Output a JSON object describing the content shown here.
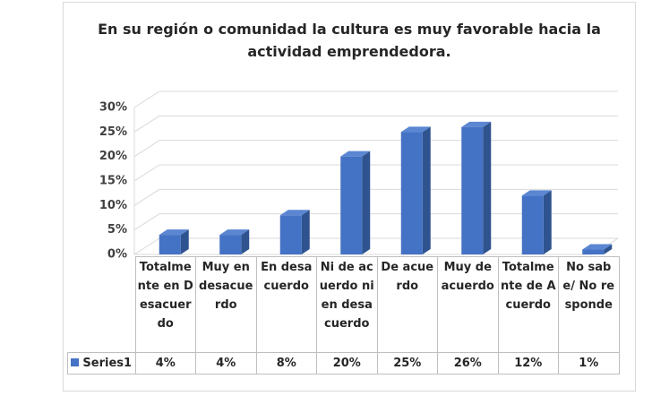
{
  "chart_data": {
    "type": "bar3d",
    "title": "En su región o comunidad la cultura es muy favorable hacia la actividad emprendedora.",
    "categories": [
      "Totalmente en Desacuerdo",
      "Muy en desacuerdo",
      "En desacuerdo",
      "Ni de acuerdo ni en desacuerdo",
      "De acuerdo",
      "Muy de acuerdo",
      "Totalmente de Acuerdo",
      "No sabe/ No responde"
    ],
    "series": [
      {
        "name": "Series1",
        "color": "#4472c4",
        "values": [
          4,
          4,
          8,
          20,
          25,
          26,
          12,
          1
        ],
        "value_labels": [
          "4%",
          "4%",
          "8%",
          "20%",
          "25%",
          "26%",
          "12%",
          "1%"
        ]
      }
    ],
    "ylim": [
      0,
      30
    ],
    "yticks": [
      {
        "value": 0,
        "label": "0%"
      },
      {
        "value": 5,
        "label": "5%"
      },
      {
        "value": 10,
        "label": "10%"
      },
      {
        "value": 15,
        "label": "15%"
      },
      {
        "value": 20,
        "label": "20%"
      },
      {
        "value": 25,
        "label": "25%"
      },
      {
        "value": 30,
        "label": "30%"
      }
    ],
    "grid": true
  }
}
